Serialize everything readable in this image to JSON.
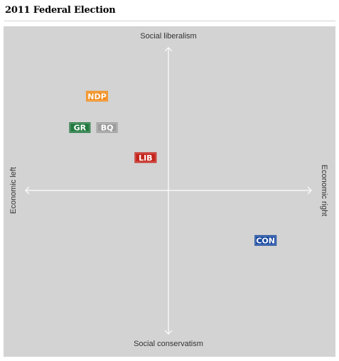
{
  "page": {
    "title": "2011 Federal Election"
  },
  "chart_data": {
    "type": "scatter",
    "title": "2011 Federal Election",
    "axis_labels": {
      "top": "Social liberalism",
      "bottom": "Social conservatism",
      "left": "Economic left",
      "right": "Economic right"
    },
    "xlim": [
      -10,
      10
    ],
    "ylim": [
      -10,
      10
    ],
    "grid": false,
    "points": [
      {
        "label": "NDP",
        "x": -5.0,
        "y": 6.6,
        "color": "#f28c1c"
      },
      {
        "label": "GR",
        "x": -6.2,
        "y": 4.4,
        "color": "#237a41"
      },
      {
        "label": "BQ",
        "x": -4.3,
        "y": 4.4,
        "color": "#9e9e9e"
      },
      {
        "label": "LIB",
        "x": -1.6,
        "y": 2.3,
        "color": "#c4251c"
      },
      {
        "label": "CON",
        "x": 6.8,
        "y": -3.5,
        "color": "#1a4a9f"
      }
    ],
    "colors": {
      "plot_background": "#d3d3d3",
      "axis_line": "#ffffff"
    }
  }
}
